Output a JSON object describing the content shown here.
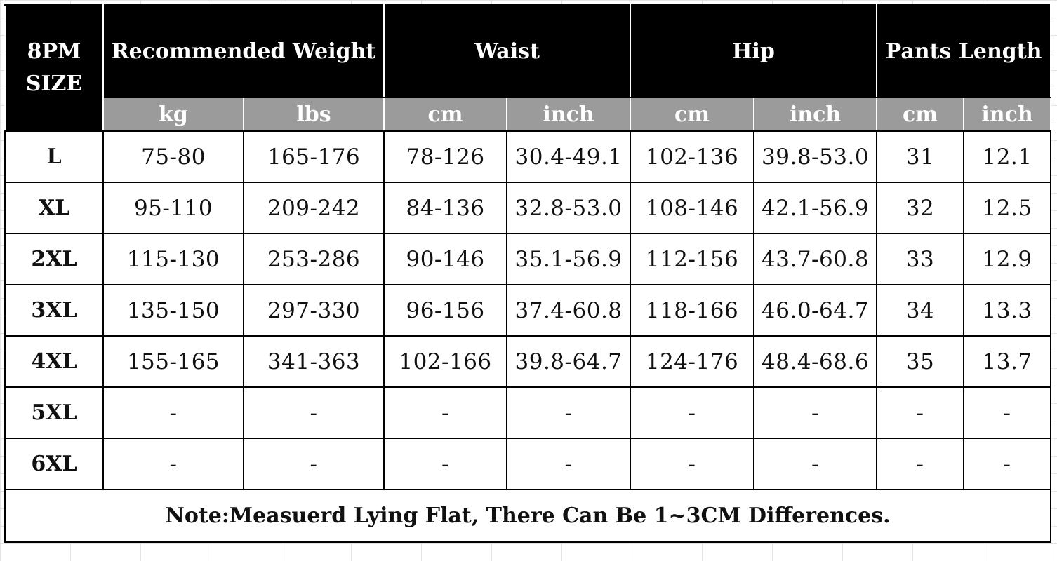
{
  "header": {
    "size_label_line1": "8PM",
    "size_label_line2": "SIZE",
    "groups": [
      "Recommended Weight",
      "Waist",
      "Hip",
      "Pants Length"
    ],
    "units": [
      "kg",
      "lbs",
      "cm",
      "inch",
      "cm",
      "inch",
      "cm",
      "inch"
    ]
  },
  "rows": [
    {
      "size": "L",
      "values": [
        "75-80",
        "165-176",
        "78-126",
        "30.4-49.1",
        "102-136",
        "39.8-53.0",
        "31",
        "12.1"
      ]
    },
    {
      "size": "XL",
      "values": [
        "95-110",
        "209-242",
        "84-136",
        "32.8-53.0",
        "108-146",
        "42.1-56.9",
        "32",
        "12.5"
      ]
    },
    {
      "size": "2XL",
      "values": [
        "115-130",
        "253-286",
        "90-146",
        "35.1-56.9",
        "112-156",
        "43.7-60.8",
        "33",
        "12.9"
      ]
    },
    {
      "size": "3XL",
      "values": [
        "135-150",
        "297-330",
        "96-156",
        "37.4-60.8",
        "118-166",
        "46.0-64.7",
        "34",
        "13.3"
      ]
    },
    {
      "size": "4XL",
      "values": [
        "155-165",
        "341-363",
        "102-166",
        "39.8-64.7",
        "124-176",
        "48.4-68.6",
        "35",
        "13.7"
      ]
    },
    {
      "size": "5XL",
      "values": [
        "-",
        "-",
        "-",
        "-",
        "-",
        "-",
        "-",
        "-"
      ]
    },
    {
      "size": "6XL",
      "values": [
        "-",
        "-",
        "-",
        "-",
        "-",
        "-",
        "-",
        "-"
      ]
    }
  ],
  "note": "Note:Measuerd Lying Flat, There Can Be 1~3CM Differences.",
  "colors": {
    "header_background": "#000000",
    "unit_row_background": "#9b9b9b",
    "header_text": "#ffffff",
    "body_text": "#111111"
  }
}
